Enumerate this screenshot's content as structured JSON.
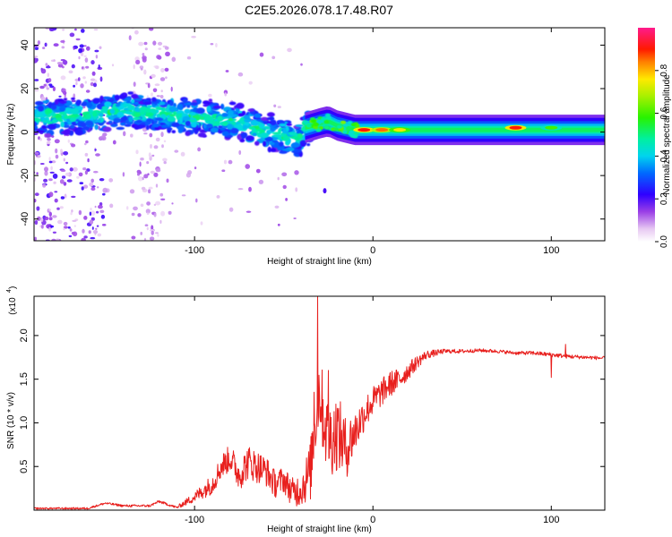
{
  "title": "C2E5.2026.078.17.48.R07",
  "chart_data": [
    {
      "type": "heatmap",
      "name": "spectrogram",
      "xlabel": "Height of straight line (km)",
      "ylabel": "Frequency (Hz)",
      "xlim": [
        -190,
        130
      ],
      "ylim": [
        -50,
        48
      ],
      "xticks": [
        -100,
        0,
        100
      ],
      "yticks": [
        -40,
        -20,
        0,
        20,
        40
      ],
      "ridge": {
        "x": [
          -188,
          -175,
          -160,
          -150,
          -140,
          -130,
          -120,
          -110,
          -100,
          -90,
          -80,
          -70,
          -60,
          -50,
          -40,
          -38,
          -30,
          -25,
          -20,
          -15,
          -10,
          -5,
          0,
          10,
          20,
          40,
          60,
          80,
          100,
          130
        ],
        "y": [
          7,
          7,
          8,
          9,
          10,
          9,
          9,
          8,
          7,
          6,
          5,
          3,
          0,
          -2,
          -3,
          2,
          4,
          5,
          3,
          2,
          1,
          1,
          1,
          1,
          1,
          1,
          1,
          1,
          1,
          1
        ]
      },
      "peaks": [
        {
          "x": -5,
          "y": 1,
          "amp": 0.9
        },
        {
          "x": 5,
          "y": 1,
          "amp": 0.85
        },
        {
          "x": 15,
          "y": 1,
          "amp": 0.75
        },
        {
          "x": 80,
          "y": 2,
          "amp": 0.9
        },
        {
          "x": 100,
          "y": 2,
          "amp": 0.6
        }
      ],
      "colorbar": {
        "label": "Normalized spectral amplitude",
        "range": [
          0.0,
          1.0
        ],
        "ticks": [
          0.0,
          0.2,
          0.4,
          0.6,
          0.8
        ],
        "tick_labels": [
          "0.0",
          "0.2",
          "0.4",
          "0.6",
          "0.8"
        ]
      }
    },
    {
      "type": "line",
      "name": "snr",
      "xlabel": "Height of straight line (km)",
      "ylabel": "SNR (10 * v/v)",
      "yscale_label": "(x10",
      "yscale_exp": "4",
      "xlim": [
        -190,
        130
      ],
      "ylim": [
        0,
        2.45
      ],
      "xticks": [
        -100,
        0,
        100
      ],
      "yticks": [
        0.5,
        1.0,
        1.5,
        2.0
      ],
      "ytick_labels": [
        "0.5",
        "1.0",
        "1.5",
        "2.0"
      ],
      "color": "#e8201e",
      "envelope": {
        "x": [
          -190,
          -160,
          -150,
          -140,
          -125,
          -120,
          -110,
          -100,
          -90,
          -85,
          -80,
          -75,
          -70,
          -65,
          -60,
          -55,
          -50,
          -45,
          -40,
          -35,
          -33,
          -30,
          -28,
          -25,
          -20,
          -15,
          -10,
          -5,
          0,
          5,
          10,
          15,
          20,
          25,
          30,
          40,
          50,
          60,
          70,
          80,
          90,
          100,
          110,
          120,
          130
        ],
        "y": [
          0.02,
          0.02,
          0.08,
          0.05,
          0.05,
          0.1,
          0.03,
          0.15,
          0.3,
          0.5,
          0.6,
          0.4,
          0.55,
          0.5,
          0.45,
          0.3,
          0.35,
          0.2,
          0.25,
          0.45,
          0.9,
          1.4,
          1.1,
          0.8,
          0.9,
          0.7,
          0.9,
          1.1,
          1.25,
          1.35,
          1.45,
          1.5,
          1.6,
          1.7,
          1.78,
          1.82,
          1.82,
          1.83,
          1.82,
          1.8,
          1.8,
          1.78,
          1.76,
          1.75,
          1.74
        ]
      },
      "noise": {
        "x": [
          -190,
          -110,
          -100,
          -90,
          -70,
          -50,
          -40,
          -35,
          -30,
          -20,
          -15,
          -10,
          -5,
          0,
          10,
          20,
          30,
          40,
          60,
          80,
          100,
          130
        ],
        "y": [
          0.01,
          0.015,
          0.06,
          0.12,
          0.2,
          0.15,
          0.2,
          0.35,
          0.45,
          0.45,
          0.35,
          0.25,
          0.2,
          0.17,
          0.15,
          0.1,
          0.05,
          0.025,
          0.02,
          0.02,
          0.025,
          0.02
        ]
      },
      "spikes": [
        {
          "x": -31,
          "y": 2.45
        },
        {
          "x": -25,
          "y": 1.6
        },
        {
          "x": -33,
          "y": 1.35
        },
        {
          "x": 100,
          "y": 1.52
        },
        {
          "x": 108,
          "y": 1.9
        }
      ]
    }
  ]
}
